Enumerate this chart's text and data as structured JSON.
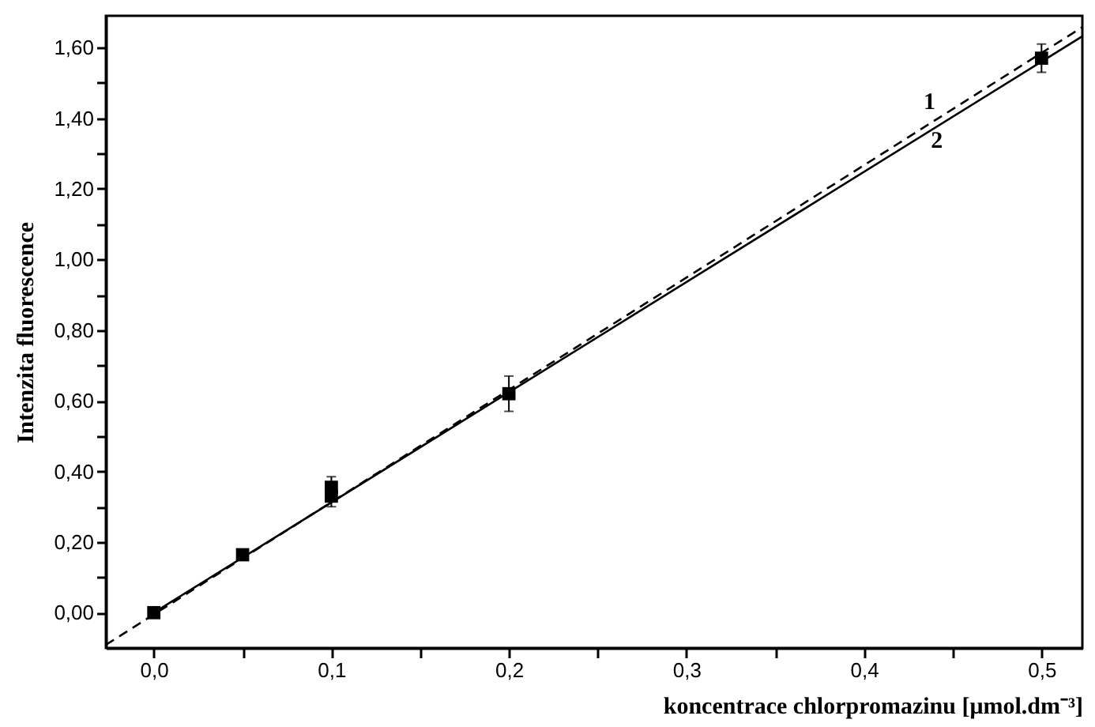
{
  "chart_data": {
    "type": "scatter",
    "xlabel": "koncentrace chlorpromazinu [μmol.dm⁻³]",
    "ylabel": "Intenzita fluorescence",
    "xlim": [
      -0.027,
      0.523
    ],
    "ylim": [
      -0.1,
      1.69
    ],
    "xticks": [
      {
        "value": 0,
        "label": "0,0"
      },
      {
        "value": 0.05,
        "label": null
      },
      {
        "value": 0.1,
        "label": "0,1"
      },
      {
        "value": 0.15,
        "label": null
      },
      {
        "value": 0.2,
        "label": "0,2"
      },
      {
        "value": 0.25,
        "label": null
      },
      {
        "value": 0.3,
        "label": "0,3"
      },
      {
        "value": 0.35,
        "label": null
      },
      {
        "value": 0.4,
        "label": "0,4"
      },
      {
        "value": 0.45,
        "label": null
      },
      {
        "value": 0.5,
        "label": "0,5"
      }
    ],
    "yticks": [
      {
        "value": 0,
        "label": "0,00"
      },
      {
        "value": 0.1,
        "label": null
      },
      {
        "value": 0.2,
        "label": "0,20"
      },
      {
        "value": 0.3,
        "label": null
      },
      {
        "value": 0.4,
        "label": "0,40"
      },
      {
        "value": 0.5,
        "label": null
      },
      {
        "value": 0.6,
        "label": "0,60"
      },
      {
        "value": 0.7,
        "label": null
      },
      {
        "value": 0.8,
        "label": "0,80"
      },
      {
        "value": 0.9,
        "label": null
      },
      {
        "value": 1.0,
        "label": "1,00"
      },
      {
        "value": 1.1,
        "label": null
      },
      {
        "value": 1.2,
        "label": "1,20"
      },
      {
        "value": 1.3,
        "label": null
      },
      {
        "value": 1.4,
        "label": "1,40"
      },
      {
        "value": 1.5,
        "label": null
      },
      {
        "value": 1.6,
        "label": "1,60"
      }
    ],
    "grid": false,
    "series": [
      {
        "type": "line",
        "name": "1",
        "color": "#000000",
        "line_style": "dashed",
        "x": [
          -0.027,
          0.523
        ],
        "values": [
          -0.091,
          1.658
        ]
      },
      {
        "type": "line",
        "name": "2",
        "color": "#000000",
        "line_style": "solid",
        "x": [
          0,
          0.523
        ],
        "values": [
          0,
          1.632
        ]
      },
      {
        "color": "#000000",
        "marker": "square",
        "x": [
          0,
          0.05,
          0.1,
          0.1,
          0.2,
          0.5
        ],
        "values": [
          0,
          0.164,
          0.33,
          0.355,
          0.62,
          1.57
        ],
        "errors": [
          null,
          null,
          0.03,
          0.03,
          0.05,
          0.04
        ]
      }
    ]
  }
}
